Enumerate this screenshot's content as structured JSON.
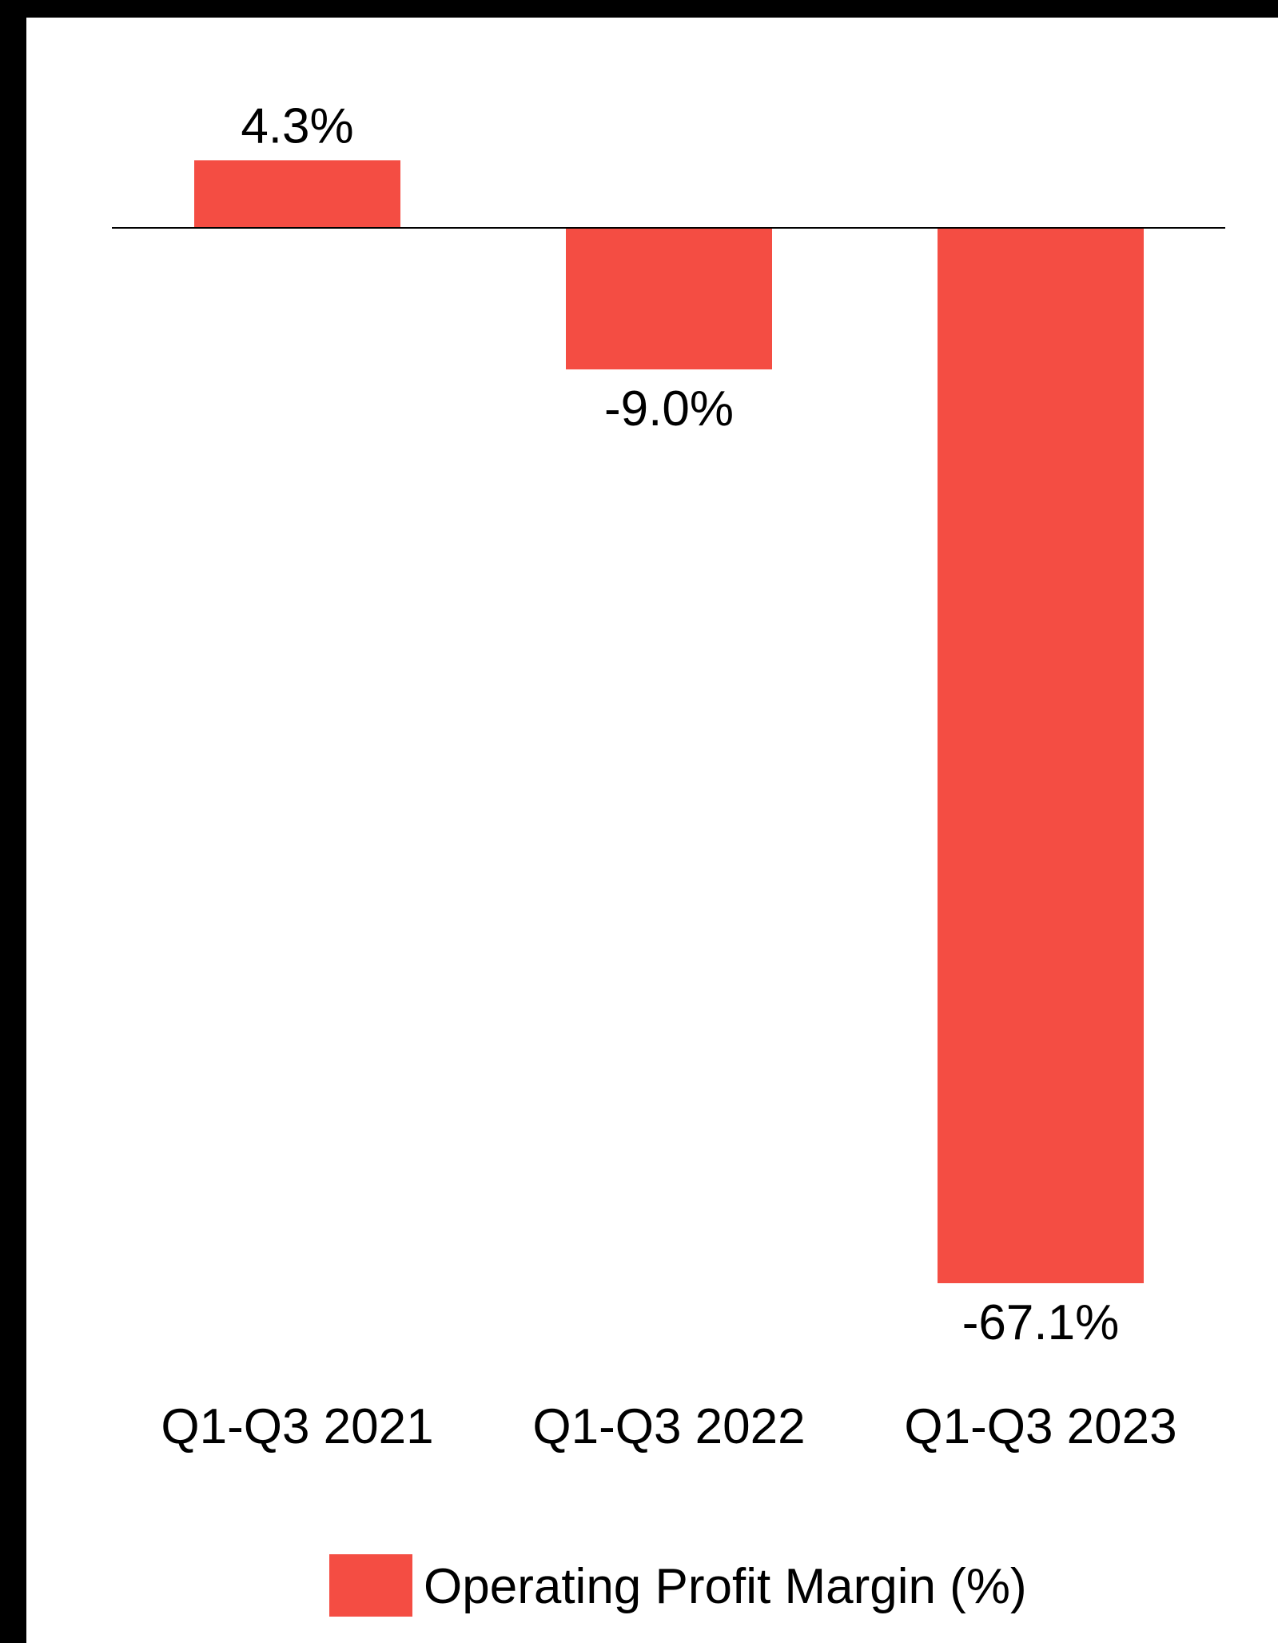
{
  "chart_data": {
    "type": "bar",
    "categories": [
      "Q1-Q3 2021",
      "Q1-Q3 2022",
      "Q1-Q3 2023"
    ],
    "series": [
      {
        "name": "Operating Profit Margin (%)",
        "values": [
          4.3,
          -9.0,
          -67.1
        ],
        "color": "#f44d43"
      }
    ],
    "data_labels": [
      "4.3%",
      "-9.0%",
      "-67.1%"
    ],
    "title": "",
    "xlabel": "",
    "ylabel": "",
    "ylim": [
      -67.1,
      4.3
    ],
    "grid": false,
    "legend_position": "bottom"
  }
}
